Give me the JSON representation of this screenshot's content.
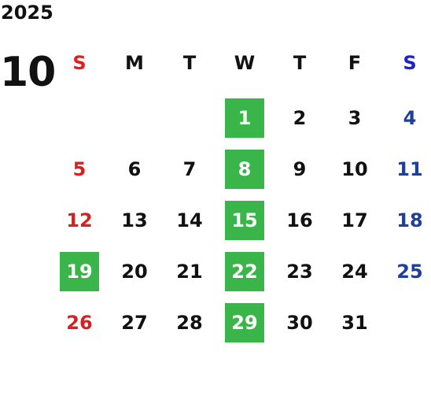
{
  "calendar": {
    "year": "2025",
    "month": "10",
    "weekdays": [
      "S",
      "M",
      "T",
      "W",
      "T",
      "F",
      "S"
    ],
    "weeks": [
      [
        "",
        "",
        "",
        "1",
        "2",
        "3",
        "4"
      ],
      [
        "5",
        "6",
        "7",
        "8",
        "9",
        "10",
        "11"
      ],
      [
        "12",
        "13",
        "14",
        "15",
        "16",
        "17",
        "18"
      ],
      [
        "19",
        "20",
        "21",
        "22",
        "23",
        "24",
        "25"
      ],
      [
        "26",
        "27",
        "28",
        "29",
        "30",
        "31",
        ""
      ]
    ],
    "highlighted_days": [
      "1",
      "8",
      "15",
      "19",
      "22",
      "29"
    ],
    "colors": {
      "sunday": "#d92020",
      "saturday": "#1e3f9a",
      "weekday": "#111111",
      "highlight_bg": "#3ab54a",
      "highlight_text": "#ffffff"
    }
  }
}
